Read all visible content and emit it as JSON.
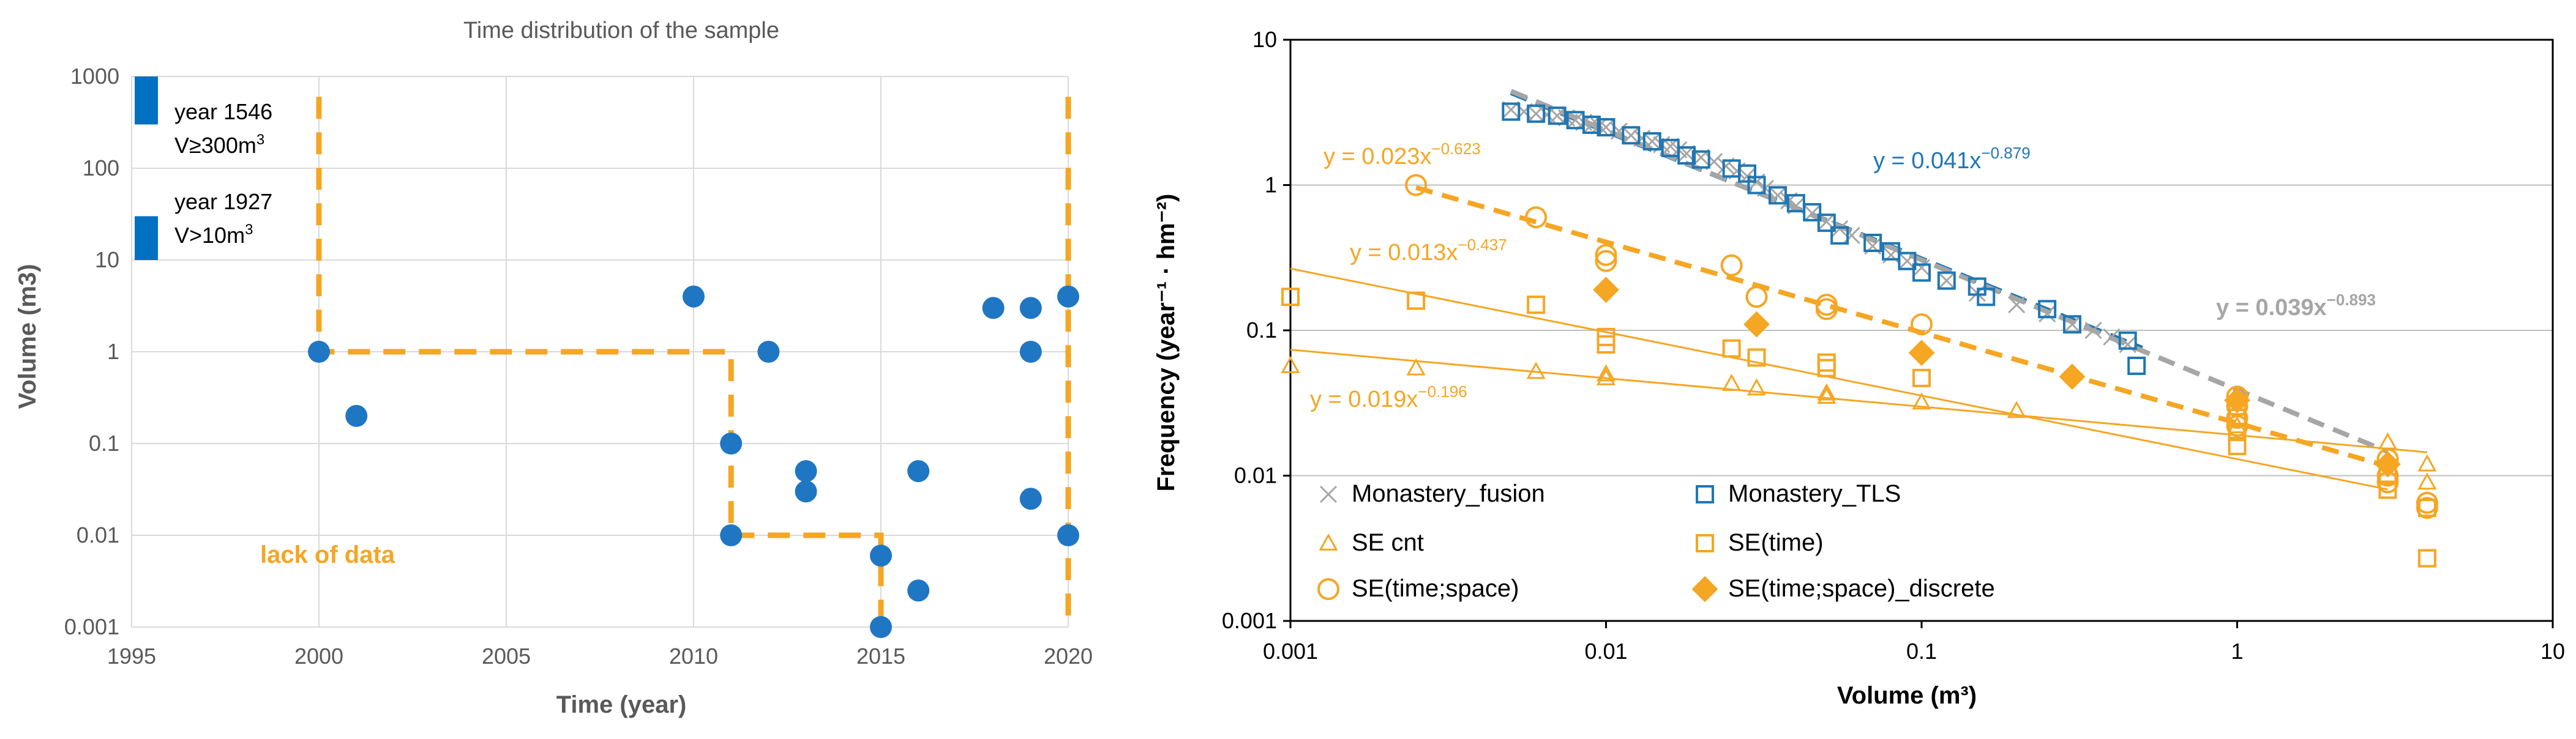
{
  "chart_data": [
    {
      "type": "scatter",
      "title": "Time distribution of the sample",
      "xlabel": "Time (year)",
      "ylabel": "Volume (m3)",
      "xlim": [
        1995,
        2020
      ],
      "ylim": [
        0.001,
        1000
      ],
      "yscale": "log",
      "grid": true,
      "xticks": [
        1995,
        2000,
        2005,
        2010,
        2015,
        2020
      ],
      "yticks": [
        0.001,
        0.01,
        0.1,
        1,
        10,
        100,
        1000
      ],
      "ytick_labels": [
        "0.001",
        "0.01",
        "0.1",
        "1",
        "10",
        "100",
        "1000"
      ],
      "points": [
        [
          2000,
          1
        ],
        [
          2001,
          0.2
        ],
        [
          2010,
          4
        ],
        [
          2011,
          0.1
        ],
        [
          2011,
          0.01
        ],
        [
          2012,
          1
        ],
        [
          2013,
          0.05
        ],
        [
          2013,
          0.03
        ],
        [
          2015,
          0.006
        ],
        [
          2015,
          0.001
        ],
        [
          2016,
          0.05
        ],
        [
          2016,
          0.0025
        ],
        [
          2018,
          3
        ],
        [
          2019,
          3
        ],
        [
          2019,
          1
        ],
        [
          2019,
          0.025
        ],
        [
          2020,
          4
        ],
        [
          2020,
          0.01
        ]
      ],
      "dashed_path": [
        [
          2000,
          600
        ],
        [
          2000,
          1
        ],
        [
          2011,
          1
        ],
        [
          2011,
          0.01
        ],
        [
          2015,
          0.01
        ],
        [
          2015,
          0.001
        ]
      ],
      "dashed_vertical": [
        [
          2020,
          600
        ],
        [
          2020,
          0.001
        ]
      ],
      "historic_bars": [
        {
          "year_label": "year 1546",
          "volume_label": "V≥300m",
          "superscript": "3",
          "ymin": 300,
          "ymax": 1000
        },
        {
          "year_label": "year 1927",
          "volume_label": "V>10m",
          "superscript": "3",
          "ymin": 10,
          "ymax": 30
        }
      ],
      "annotation": "lack of data",
      "colors": {
        "points": "#1F77C4",
        "dashed": "#F5A623",
        "bars": "#0070C0"
      }
    },
    {
      "type": "scatter",
      "xlabel": "Volume (m³)",
      "ylabel": "Frequency (year⁻¹ · hm⁻²)",
      "xscale": "log",
      "yscale": "log",
      "xlim": [
        0.001,
        10
      ],
      "ylim": [
        0.001,
        10
      ],
      "xticks": [
        0.001,
        0.01,
        0.1,
        1,
        10
      ],
      "xtick_labels": [
        "0.001",
        "0.01",
        "0.1",
        "1",
        "10"
      ],
      "yticks": [
        0.001,
        0.01,
        0.1,
        1,
        10
      ],
      "ytick_labels": [
        "0.001",
        "0.01",
        "0.1",
        "1",
        "10"
      ],
      "fits": [
        {
          "label": "y = 0.041x",
          "exp": "−0.879",
          "a": 0.041,
          "b": -0.879,
          "range": [
            0.005,
            0.5
          ],
          "color": "#1F77B4",
          "dashed": true
        },
        {
          "label": "y = 0.039x",
          "exp": "−0.893",
          "a": 0.039,
          "b": -0.893,
          "range": [
            0.005,
            3
          ],
          "color": "#A6A6A6",
          "dashed": true
        },
        {
          "label": "y = 0.023x",
          "exp": "−0.623",
          "a": 0.023,
          "b": -0.623,
          "range": [
            0.0025,
            3
          ],
          "color": "#F5A623",
          "dashed": true
        },
        {
          "label": "y = 0.013x",
          "exp": "−0.437",
          "a": 0.013,
          "b": -0.437,
          "range": [
            0.001,
            3
          ],
          "color": "#F5A623",
          "dashed": false
        },
        {
          "label": "y = 0.019x",
          "exp": "−0.196",
          "a": 0.019,
          "b": -0.196,
          "range": [
            0.001,
            4
          ],
          "color": "#F5A623",
          "dashed": false
        }
      ],
      "series": [
        {
          "name": "Monastery_fusion",
          "marker": "x",
          "color": "#A6A6A6",
          "points": [
            [
              0.005,
              3.3
            ],
            [
              0.0055,
              3.2
            ],
            [
              0.006,
              3.1
            ],
            [
              0.0065,
              3.05
            ],
            [
              0.007,
              3.0
            ],
            [
              0.0075,
              2.9
            ],
            [
              0.008,
              2.8
            ],
            [
              0.0085,
              2.7
            ],
            [
              0.009,
              2.6
            ],
            [
              0.0095,
              2.55
            ],
            [
              0.01,
              2.5
            ],
            [
              0.011,
              2.35
            ],
            [
              0.012,
              2.2
            ],
            [
              0.013,
              2.1
            ],
            [
              0.014,
              2.0
            ],
            [
              0.015,
              1.9
            ],
            [
              0.016,
              1.85
            ],
            [
              0.017,
              1.75
            ],
            [
              0.018,
              1.65
            ],
            [
              0.02,
              1.55
            ],
            [
              0.022,
              1.45
            ],
            [
              0.024,
              1.35
            ],
            [
              0.026,
              1.25
            ],
            [
              0.028,
              1.15
            ],
            [
              0.03,
              1.05
            ],
            [
              0.032,
              0.95
            ],
            [
              0.035,
              0.85
            ],
            [
              0.038,
              0.78
            ],
            [
              0.04,
              0.72
            ],
            [
              0.045,
              0.64
            ],
            [
              0.05,
              0.56
            ],
            [
              0.055,
              0.5
            ],
            [
              0.06,
              0.45
            ],
            [
              0.07,
              0.38
            ],
            [
              0.08,
              0.33
            ],
            [
              0.09,
              0.3
            ],
            [
              0.1,
              0.27
            ],
            [
              0.12,
              0.22
            ],
            [
              0.15,
              0.18
            ],
            [
              0.2,
              0.15
            ],
            [
              0.25,
              0.13
            ],
            [
              0.3,
              0.11
            ],
            [
              0.35,
              0.1
            ],
            [
              0.4,
              0.09
            ],
            [
              0.45,
              0.08
            ]
          ]
        },
        {
          "name": "Monastery_TLS",
          "marker": "square-open",
          "color": "#1F77B4",
          "points": [
            [
              0.005,
              3.2
            ],
            [
              0.006,
              3.1
            ],
            [
              0.007,
              3.0
            ],
            [
              0.008,
              2.8
            ],
            [
              0.009,
              2.6
            ],
            [
              0.01,
              2.5
            ],
            [
              0.012,
              2.2
            ],
            [
              0.014,
              2.0
            ],
            [
              0.016,
              1.8
            ],
            [
              0.018,
              1.6
            ],
            [
              0.02,
              1.5
            ],
            [
              0.025,
              1.3
            ],
            [
              0.028,
              1.2
            ],
            [
              0.03,
              1.0
            ],
            [
              0.035,
              0.85
            ],
            [
              0.04,
              0.75
            ],
            [
              0.045,
              0.65
            ],
            [
              0.05,
              0.55
            ],
            [
              0.055,
              0.45
            ],
            [
              0.07,
              0.4
            ],
            [
              0.08,
              0.35
            ],
            [
              0.09,
              0.3
            ],
            [
              0.1,
              0.25
            ],
            [
              0.12,
              0.22
            ],
            [
              0.15,
              0.2
            ],
            [
              0.16,
              0.17
            ],
            [
              0.25,
              0.14
            ],
            [
              0.3,
              0.11
            ],
            [
              0.45,
              0.085
            ],
            [
              0.48,
              0.057
            ]
          ]
        },
        {
          "name": "SE cnt",
          "marker": "triangle-open",
          "color": "#F5A623",
          "points": [
            [
              0.001,
              0.057
            ],
            [
              0.0025,
              0.055
            ],
            [
              0.006,
              0.052
            ],
            [
              0.01,
              0.047
            ],
            [
              0.01,
              0.05
            ],
            [
              0.025,
              0.043
            ],
            [
              0.03,
              0.04
            ],
            [
              0.05,
              0.037
            ],
            [
              0.05,
              0.035
            ],
            [
              0.1,
              0.032
            ],
            [
              0.2,
              0.028
            ],
            [
              1,
              0.022
            ],
            [
              3,
              0.017
            ],
            [
              4,
              0.012
            ],
            [
              4,
              0.009
            ]
          ]
        },
        {
          "name": "SE(time)",
          "marker": "square-open",
          "color": "#F5A623",
          "points": [
            [
              0.001,
              0.17
            ],
            [
              0.0025,
              0.16
            ],
            [
              0.006,
              0.15
            ],
            [
              0.01,
              0.09
            ],
            [
              0.01,
              0.08
            ],
            [
              0.025,
              0.075
            ],
            [
              0.03,
              0.065
            ],
            [
              0.05,
              0.06
            ],
            [
              0.05,
              0.055
            ],
            [
              0.1,
              0.047
            ],
            [
              1,
              0.03
            ],
            [
              1,
              0.025
            ],
            [
              1,
              0.02
            ],
            [
              1,
              0.016
            ],
            [
              3,
              0.01
            ],
            [
              3,
              0.008
            ],
            [
              4,
              0.006
            ],
            [
              4,
              0.0027
            ]
          ]
        },
        {
          "name": "SE(time;space)",
          "marker": "circle-open",
          "color": "#F5A623",
          "points": [
            [
              0.0025,
              1.0
            ],
            [
              0.006,
              0.6
            ],
            [
              0.01,
              0.33
            ],
            [
              0.01,
              0.3
            ],
            [
              0.025,
              0.28
            ],
            [
              0.03,
              0.17
            ],
            [
              0.05,
              0.15
            ],
            [
              0.05,
              0.14
            ],
            [
              0.1,
              0.11
            ],
            [
              1,
              0.035
            ],
            [
              1,
              0.03
            ],
            [
              1,
              0.025
            ],
            [
              1,
              0.022
            ],
            [
              3,
              0.013
            ],
            [
              3,
              0.01
            ],
            [
              3,
              0.009
            ],
            [
              4,
              0.0065
            ],
            [
              4,
              0.006
            ]
          ]
        },
        {
          "name": "SE(time;space)_discrete",
          "marker": "diamond-filled",
          "color": "#F5A623",
          "points": [
            [
              0.01,
              0.19
            ],
            [
              0.03,
              0.11
            ],
            [
              0.1,
              0.07
            ],
            [
              0.3,
              0.048
            ],
            [
              1,
              0.033
            ],
            [
              3,
              0.012
            ]
          ]
        }
      ]
    }
  ]
}
